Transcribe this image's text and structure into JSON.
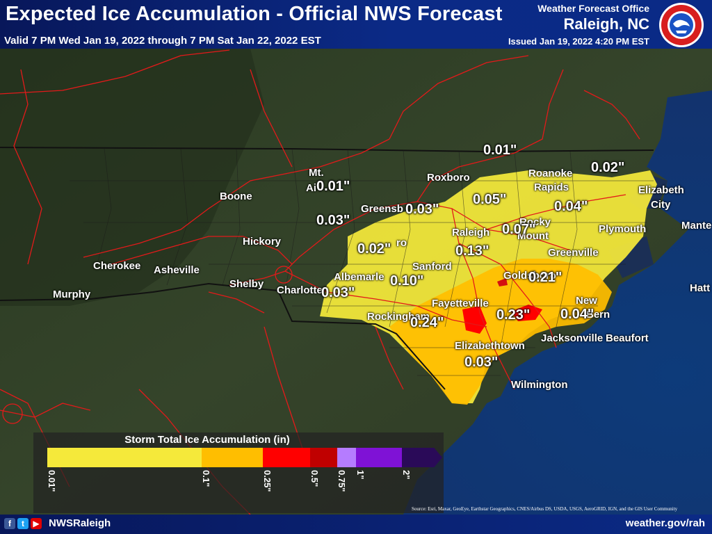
{
  "header": {
    "title": "Expected Ice Accumulation - Official NWS Forecast",
    "valid": "Valid 7 PM Wed Jan 19, 2022 through 7 PM Sat Jan 22, 2022 EST",
    "office_line1": "Weather Forecast Office",
    "office_line2": "Raleigh, NC",
    "issued": "Issued Jan 19, 2022 4:20 PM EST",
    "logo_text": "NATIONAL WEATHER SERVICE"
  },
  "cities": [
    {
      "name": "Boone"
    },
    {
      "name": "Mt."
    },
    {
      "name": "Ai"
    },
    {
      "name": "Roxboro"
    },
    {
      "name": "Roanoke"
    },
    {
      "name": "Rapids"
    },
    {
      "name": "Elizabeth"
    },
    {
      "name": "City"
    },
    {
      "name": "Greensb"
    },
    {
      "name": "Raleigh"
    },
    {
      "name": "Rocky"
    },
    {
      "name": "Mount"
    },
    {
      "name": "Plymouth"
    },
    {
      "name": "Mante"
    },
    {
      "name": "Hickory"
    },
    {
      "name": "Cherokee"
    },
    {
      "name": "Asheville"
    },
    {
      "name": "Shelby"
    },
    {
      "name": "Charlotte"
    },
    {
      "name": "Albemarle"
    },
    {
      "name": "Sanford"
    },
    {
      "name": "Greenville"
    },
    {
      "name": "Goldsboro"
    },
    {
      "name": "Hatt"
    },
    {
      "name": "Murphy"
    },
    {
      "name": "Fayetteville"
    },
    {
      "name": "New"
    },
    {
      "name": "Bern"
    },
    {
      "name": "Rockingham"
    },
    {
      "name": "Jacksonville"
    },
    {
      "name": "Beaufort"
    },
    {
      "name": "Elizabethtown"
    },
    {
      "name": "Wilmington"
    },
    {
      "name": "ro"
    }
  ],
  "amounts": [
    "0.01\"",
    "0.02\"",
    "0.01\"",
    "0.03\"",
    "0.05\"",
    "0.04\"",
    "0.02\"",
    "0.07\"",
    "0.03\"",
    "0.13\"",
    "0.21\"",
    "0.10\"",
    "0.03\"",
    "0.24\"",
    "0.23\"",
    "0.04\"",
    "0.03\""
  ],
  "legend": {
    "title": "Storm Total Ice Accumulation (in)",
    "bins": [
      {
        "label": "0.01\"",
        "color": "#f5e93a"
      },
      {
        "label": "0.1\"",
        "color": "#ffbe00"
      },
      {
        "label": "0.25\"",
        "color": "#ff0000"
      },
      {
        "label": "0.5\"",
        "color": "#c00000"
      },
      {
        "label": "0.75\"",
        "color": "#b57cff"
      },
      {
        "label": "1\"",
        "color": "#7f12d6"
      },
      {
        "label": "2\"",
        "color": "#2a0a58"
      }
    ]
  },
  "footer": {
    "handle": "NWSRaleigh",
    "website": "weather.gov/rah",
    "source": "Source: Esri, Maxar, GeoEye, Earthstar Geographics, CNES/Airbus DS, USDA, USGS, AeroGRID, IGN, and the GIS User Community",
    "social_icons": [
      "facebook-icon",
      "twitter-icon",
      "youtube-icon"
    ]
  }
}
